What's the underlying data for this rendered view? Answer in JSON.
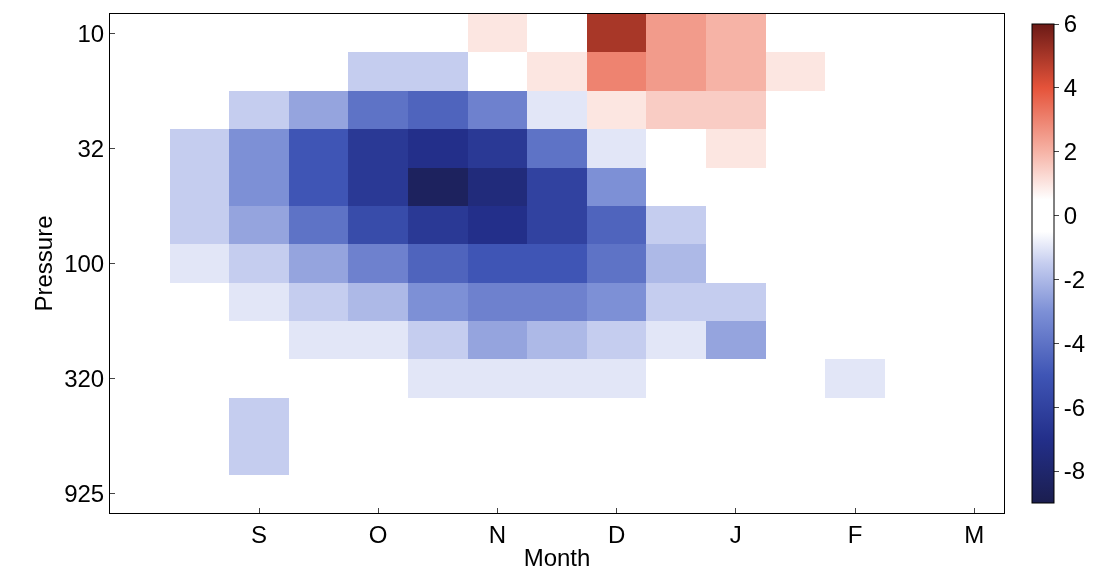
{
  "chart_data": {
    "type": "heatmap",
    "xlabel": "Month",
    "ylabel": "Pressure",
    "categories": [
      null,
      null,
      "S",
      null,
      "O",
      null,
      "N",
      null,
      "D",
      null,
      "J",
      null,
      "F",
      null,
      "M"
    ],
    "y_categories": [
      "10",
      null,
      null,
      "32",
      null,
      null,
      "100",
      null,
      null,
      "320",
      null,
      null,
      "925"
    ],
    "cells": [
      [
        0,
        0,
        0,
        0,
        -0.5,
        0,
        1,
        0,
        5,
        2.5,
        2,
        0.5,
        0,
        0,
        0
      ],
      [
        0,
        0,
        0,
        -0.5,
        -1.5,
        -1.5,
        0,
        1,
        3,
        2.5,
        2,
        1,
        0,
        0,
        0
      ],
      [
        0,
        -0.5,
        -1.5,
        -2.5,
        -4,
        -4.5,
        -3.5,
        -1,
        1,
        1.5,
        1.5,
        0.5,
        0,
        0,
        0
      ],
      [
        -0.5,
        -1.5,
        -3,
        -5,
        -6.5,
        -7,
        -6.5,
        -4,
        -1,
        0.5,
        1,
        0.5,
        0,
        0,
        0
      ],
      [
        -0.5,
        -1.5,
        -3,
        -5,
        -6.5,
        -8.5,
        -7.5,
        -6,
        -3,
        -0.5,
        0.5,
        0,
        0,
        0,
        0
      ],
      [
        -0.5,
        -1.5,
        -2.5,
        -4,
        -5.5,
        -6.5,
        -7,
        -6,
        -4.5,
        -1.5,
        0,
        0,
        0,
        0,
        0
      ],
      [
        0,
        -1,
        -1.5,
        -2.5,
        -3.5,
        -4.5,
        -5,
        -5,
        -4,
        -2,
        -0.5,
        -0.5,
        0,
        0,
        0
      ],
      [
        0,
        -0.5,
        -1,
        -1.5,
        -2,
        -3,
        -3.5,
        -3.5,
        -3,
        -1.5,
        -1.5,
        -0.5,
        0,
        0,
        0
      ],
      [
        0,
        0,
        -0.5,
        -1,
        -1,
        -1.5,
        -2.5,
        -2,
        -1.5,
        -1,
        -2.5,
        -0.5,
        0,
        0,
        0
      ],
      [
        0,
        0,
        0,
        0,
        -0.5,
        -1,
        -1,
        -1,
        -1,
        -0.5,
        -0.5,
        0,
        -1,
        0,
        0
      ],
      [
        0,
        0,
        -1.5,
        0,
        -0.5,
        0,
        0,
        0,
        0,
        0,
        0,
        0,
        0,
        0,
        0
      ],
      [
        0,
        0,
        -1.5,
        0,
        -0.5,
        0,
        0,
        0,
        0,
        0,
        0,
        0,
        0,
        -0.5,
        0
      ],
      [
        0,
        0,
        -0.5,
        0,
        0,
        0,
        0,
        -0.5,
        0,
        0,
        0,
        0,
        0,
        0,
        -0.5
      ]
    ],
    "clim": [
      -9,
      6
    ],
    "cticks": [
      -8,
      -6,
      -4,
      -2,
      0,
      2,
      4,
      6
    ]
  }
}
